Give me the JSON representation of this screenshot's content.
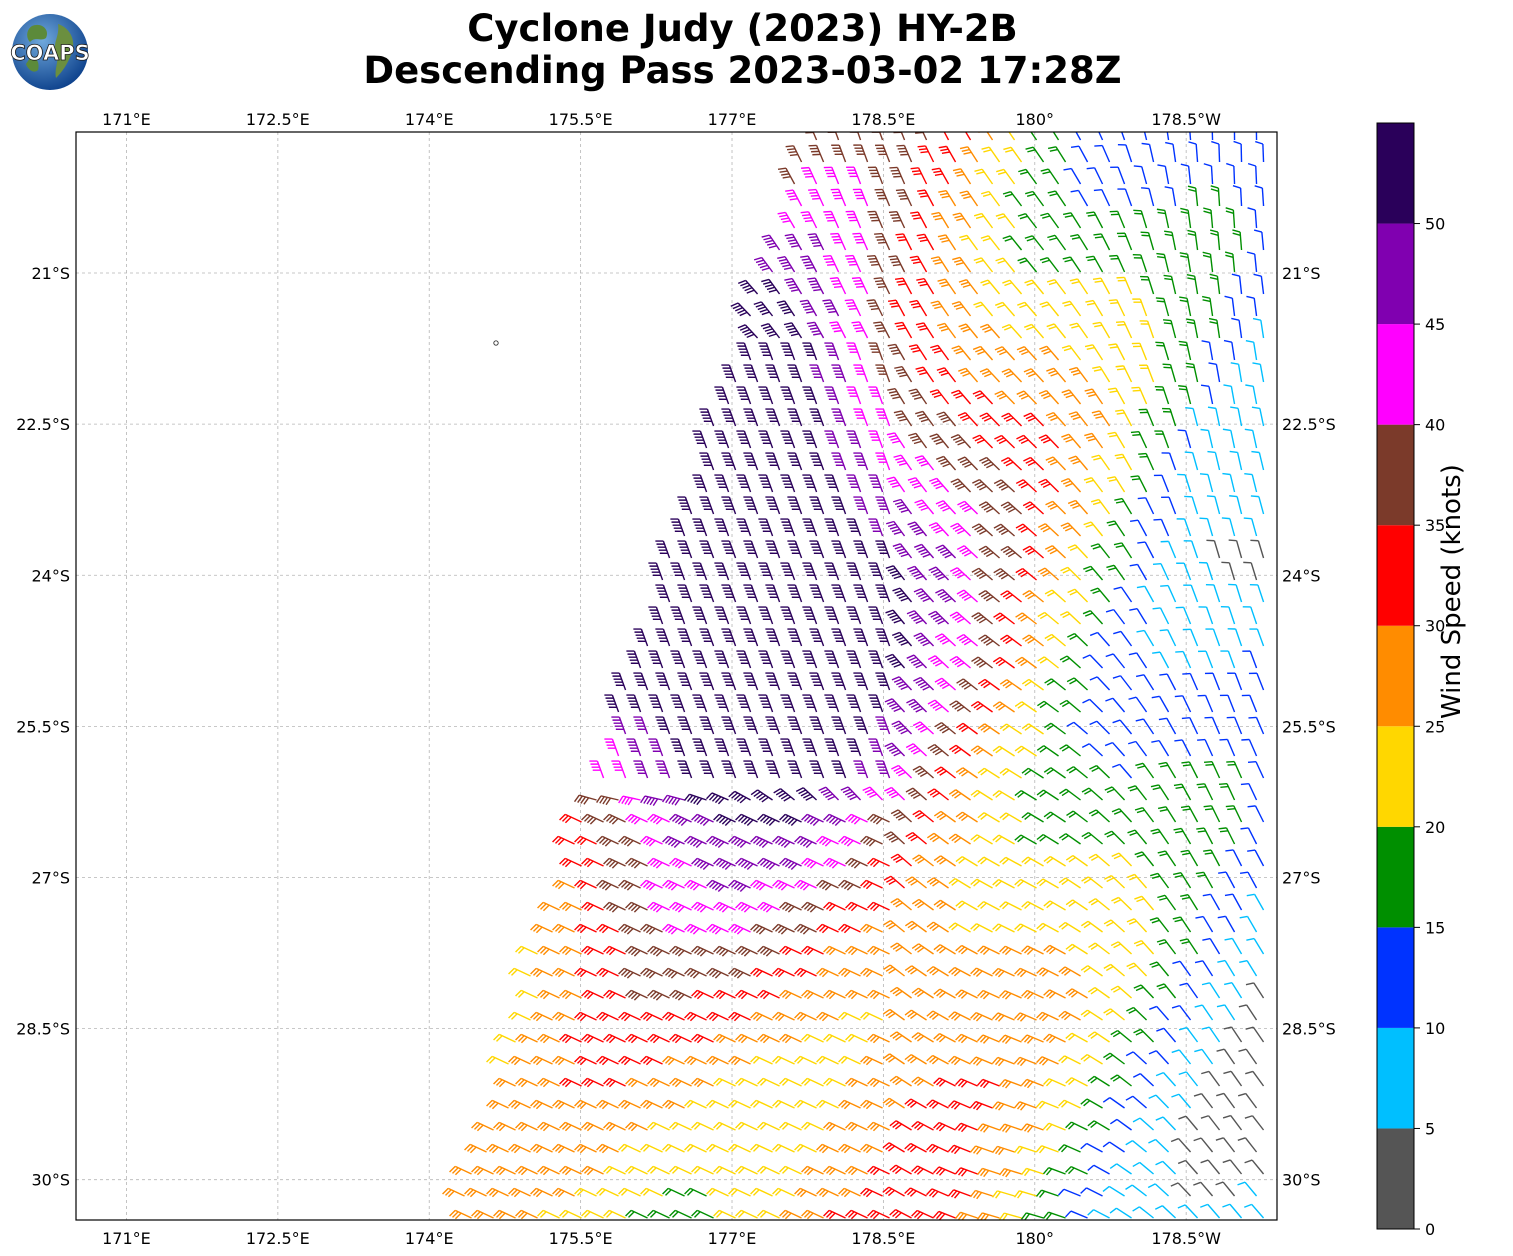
{
  "header": {
    "title_line1": "Cyclone Judy (2023) HY-2B",
    "title_line2": "Descending Pass 2023-03-02 17:28Z",
    "logo_text": "COAPS"
  },
  "map": {
    "lon_range": [
      170.5,
      182.4
    ],
    "lat_range": [
      -30.4,
      -19.6
    ],
    "lon_ticks": [
      {
        "value": 171.0,
        "label": "171°E"
      },
      {
        "value": 172.5,
        "label": "172.5°E"
      },
      {
        "value": 174.0,
        "label": "174°E"
      },
      {
        "value": 175.5,
        "label": "175.5°E"
      },
      {
        "value": 177.0,
        "label": "177°E"
      },
      {
        "value": 178.5,
        "label": "178.5°E"
      },
      {
        "value": 180.0,
        "label": "180°"
      },
      {
        "value": 181.5,
        "label": "178.5°W"
      }
    ],
    "lat_ticks": [
      {
        "value": -21.0,
        "label": "21°S"
      },
      {
        "value": -22.5,
        "label": "22.5°S"
      },
      {
        "value": -24.0,
        "label": "24°S"
      },
      {
        "value": -25.5,
        "label": "25.5°S"
      },
      {
        "value": -27.0,
        "label": "27°S"
      },
      {
        "value": -28.5,
        "label": "28.5°S"
      },
      {
        "value": -30.0,
        "label": "30°S"
      }
    ],
    "grid": true
  },
  "colorbar": {
    "label": "Wind Speed (knots)",
    "ticks": [
      "0",
      "5",
      "10",
      "15",
      "20",
      "25",
      "30",
      "35",
      "40",
      "45",
      "50"
    ],
    "bands": [
      {
        "from": 0,
        "to": 5,
        "color": "#555555"
      },
      {
        "from": 5,
        "to": 10,
        "color": "#00bfff"
      },
      {
        "from": 10,
        "to": 15,
        "color": "#0033ff"
      },
      {
        "from": 15,
        "to": 20,
        "color": "#008f00"
      },
      {
        "from": 20,
        "to": 25,
        "color": "#ffd700"
      },
      {
        "from": 25,
        "to": 30,
        "color": "#ff8c00"
      },
      {
        "from": 30,
        "to": 35,
        "color": "#ff0000"
      },
      {
        "from": 35,
        "to": 40,
        "color": "#7b3a2a"
      },
      {
        "from": 40,
        "to": 45,
        "color": "#ff00ff"
      },
      {
        "from": 45,
        "to": 50,
        "color": "#8000b0"
      },
      {
        "from": 50,
        "to": 55,
        "color": "#2a005a"
      }
    ]
  }
}
